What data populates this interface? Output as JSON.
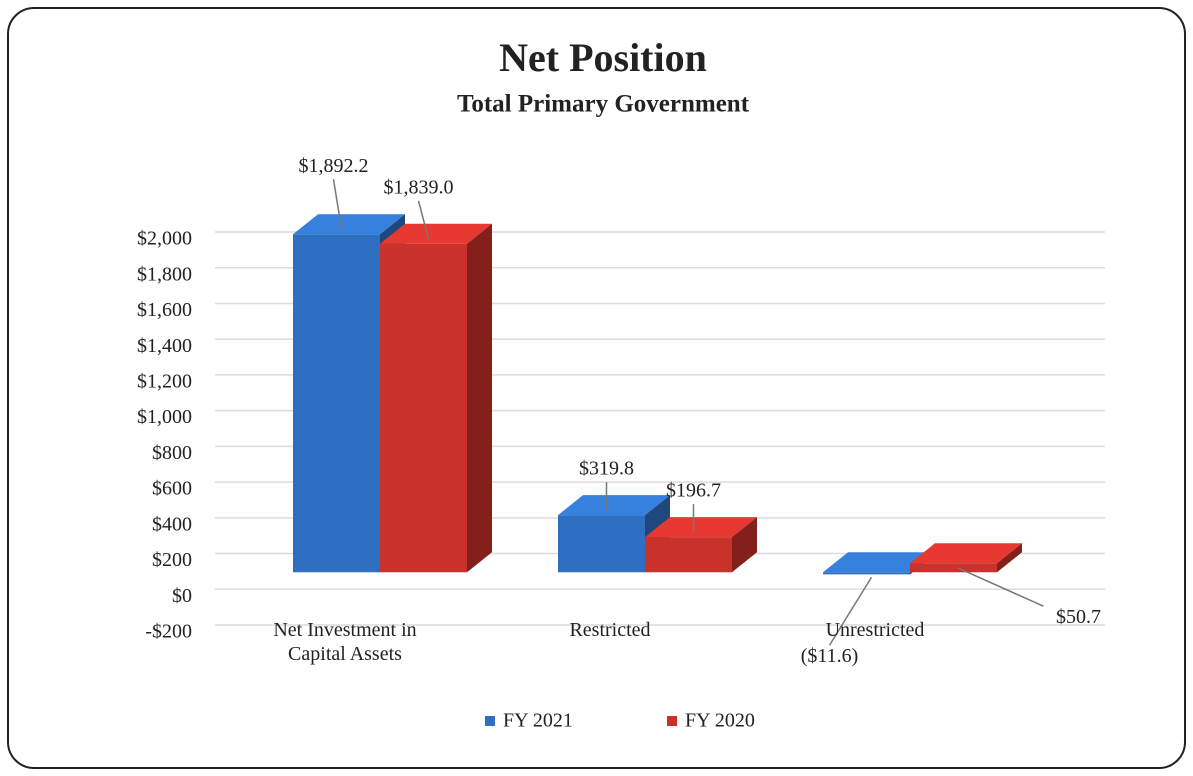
{
  "chart_data": {
    "type": "bar3d",
    "title": "Net Position",
    "subtitle": "Total Primary Government",
    "categories": [
      "Net Investment in Capital Assets",
      "Restricted",
      "Unrestricted"
    ],
    "series": [
      {
        "name": "FY 2021",
        "color": "#2f6fc1",
        "values": [
          1892.2,
          319.8,
          -11.6
        ],
        "value_labels": [
          "$1,892.2",
          "$319.8",
          "($11.6)"
        ]
      },
      {
        "name": "FY 2020",
        "color": "#c9312b",
        "values": [
          1839.0,
          196.7,
          50.7
        ],
        "value_labels": [
          "$1,839.0",
          "$196.7",
          "$50.7"
        ]
      }
    ],
    "ylim": [
      -200,
      2000
    ],
    "yticks": [
      {
        "value": -200,
        "label": "-$200"
      },
      {
        "value": 0,
        "label": "$0"
      },
      {
        "value": 200,
        "label": "$200"
      },
      {
        "value": 400,
        "label": "$400"
      },
      {
        "value": 600,
        "label": "$600"
      },
      {
        "value": 800,
        "label": "$800"
      },
      {
        "value": 1000,
        "label": "$1,000"
      },
      {
        "value": 1200,
        "label": "$1,200"
      },
      {
        "value": 1400,
        "label": "$1,400"
      },
      {
        "value": 1600,
        "label": "$1,600"
      },
      {
        "value": 1800,
        "label": "$1,800"
      },
      {
        "value": 2000,
        "label": "$2,000"
      }
    ],
    "grid": true,
    "legend": "bottom"
  }
}
